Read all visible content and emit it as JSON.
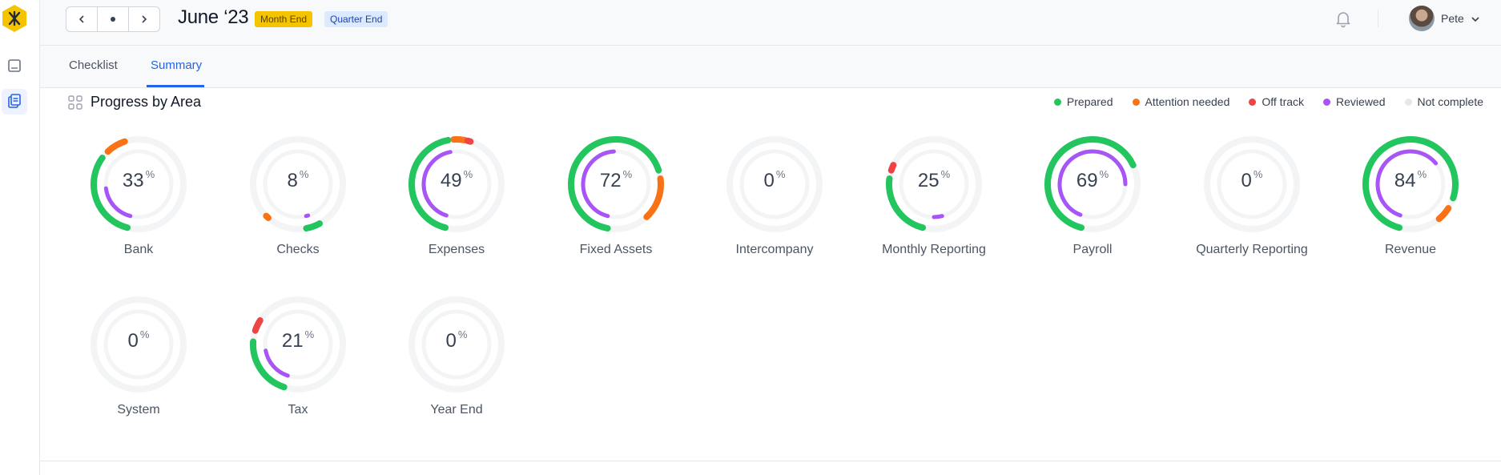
{
  "header": {
    "title": "June ‘23",
    "badges": [
      "Month End",
      "Quarter End"
    ],
    "user": "Pete"
  },
  "tabs": [
    "Checklist",
    "Summary"
  ],
  "section": {
    "title": "Progress by Area"
  },
  "legend": [
    {
      "label": "Prepared",
      "color": "#22c55e"
    },
    {
      "label": "Attention needed",
      "color": "#f97316"
    },
    {
      "label": "Off track",
      "color": "#ef4444"
    },
    {
      "label": "Reviewed",
      "color": "#a855f7"
    },
    {
      "label": "Not complete",
      "color": "#e5e7eb"
    }
  ],
  "areas": [
    {
      "name": "Bank",
      "percent": "33",
      "outer": [
        [
          "#22c55e",
          0.54,
          0.85
        ],
        [
          "#f97316",
          0.88,
          0.95
        ]
      ],
      "inner": [
        [
          "#a855f7",
          0.54,
          0.73
        ]
      ]
    },
    {
      "name": "Checks",
      "percent": "8",
      "outer": [
        [
          "#22c55e",
          0.42,
          0.47
        ],
        [
          "#f97316",
          0.615,
          0.625
        ]
      ],
      "inner": [
        [
          "#a855f7",
          0.45,
          0.46
        ]
      ]
    },
    {
      "name": "Expenses",
      "percent": "49",
      "outer": [
        [
          "#22c55e",
          0.54,
          0.97
        ],
        [
          "#f97316",
          0.99,
          1.03
        ],
        [
          "#ef4444",
          1.04,
          1.05
        ]
      ],
      "inner": [
        [
          "#a855f7",
          0.55,
          0.97
        ]
      ]
    },
    {
      "name": "Fixed Assets",
      "percent": "72",
      "outer": [
        [
          "#22c55e",
          0.53,
          1.2
        ],
        [
          "#f97316",
          1.23,
          1.38
        ]
      ],
      "inner": [
        [
          "#a855f7",
          0.54,
          0.99
        ]
      ]
    },
    {
      "name": "Intercompany",
      "percent": "0",
      "outer": [],
      "inner": []
    },
    {
      "name": "Monthly Reporting",
      "percent": "25",
      "outer": [
        [
          "#22c55e",
          0.54,
          0.77
        ],
        [
          "#ef4444",
          0.8,
          0.82
        ]
      ],
      "inner": [
        [
          "#a855f7",
          0.46,
          0.5
        ]
      ]
    },
    {
      "name": "Payroll",
      "percent": "69",
      "outer": [
        [
          "#22c55e",
          0.54,
          1.18
        ]
      ],
      "inner": [
        [
          "#a855f7",
          0.56,
          1.25
        ]
      ]
    },
    {
      "name": "Quarterly Reporting",
      "percent": "0",
      "outer": [],
      "inner": []
    },
    {
      "name": "Revenue",
      "percent": "84",
      "outer": [
        [
          "#22c55e",
          0.54,
          1.3
        ],
        [
          "#f97316",
          1.34,
          1.39
        ]
      ],
      "inner": [
        [
          "#a855f7",
          0.55,
          1.14
        ]
      ]
    },
    {
      "name": "System",
      "percent": "0",
      "outer": [],
      "inner": []
    },
    {
      "name": "Tax",
      "percent": "21",
      "outer": [
        [
          "#22c55e",
          0.55,
          0.76
        ],
        [
          "#ef4444",
          0.8,
          0.84
        ]
      ],
      "inner": [
        [
          "#a855f7",
          0.55,
          0.72
        ]
      ]
    },
    {
      "name": "Year End",
      "percent": "0",
      "outer": [],
      "inner": []
    }
  ]
}
